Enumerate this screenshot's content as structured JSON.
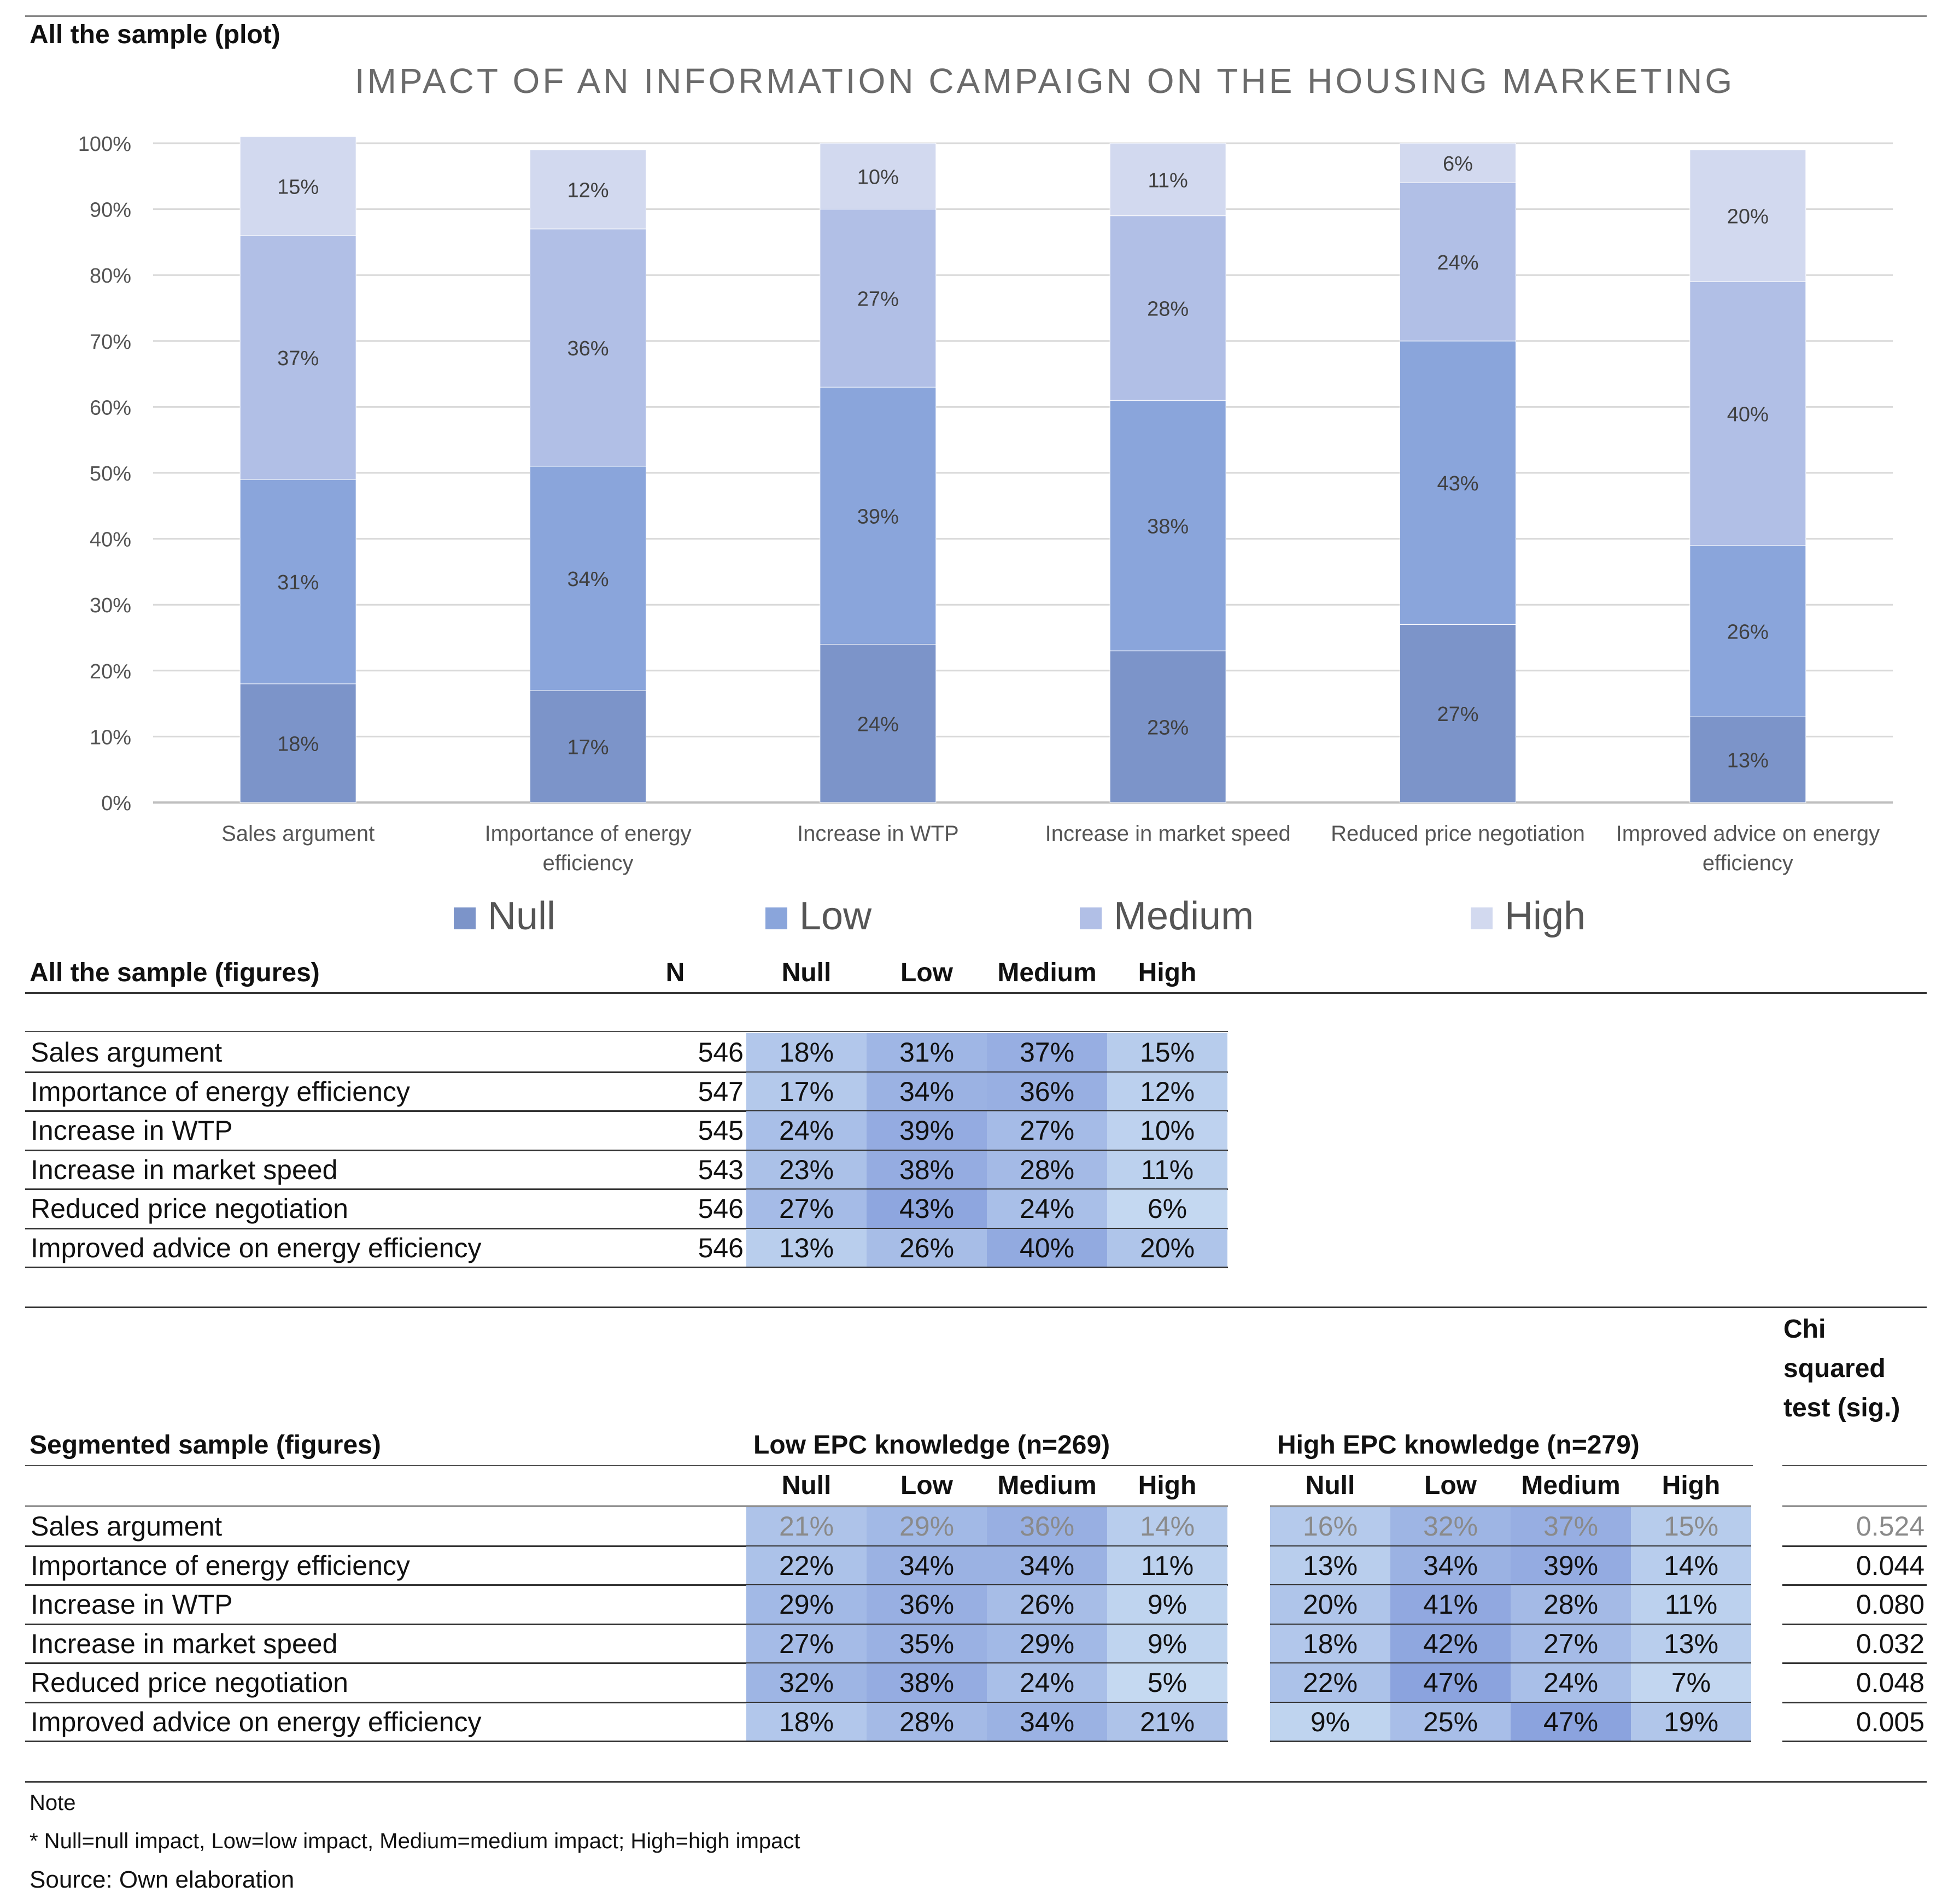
{
  "sections": {
    "plot_title": "All the sample (plot)",
    "figures_title": "All the sample (figures)",
    "segmented_title": "Segmented sample (figures)"
  },
  "chart_data": {
    "type": "bar",
    "stacked": "percent",
    "title": "IMPACT OF AN INFORMATION CAMPAIGN ON THE HOUSING MARKETING",
    "categories": [
      "Sales argument",
      "Importance of energy efficiency",
      "Increase in WTP",
      "Increase in market speed",
      "Reduced price negotiation",
      "Improved advice on energy efficiency"
    ],
    "category_lines": [
      [
        "Sales argument"
      ],
      [
        "Importance of energy",
        "efficiency"
      ],
      [
        "Increase in WTP"
      ],
      [
        "Increase in market speed"
      ],
      [
        "Reduced price negotiation"
      ],
      [
        "Improved advice on energy",
        "efficiency"
      ]
    ],
    "series": [
      {
        "name": "Null",
        "color": "#7c94c9",
        "values": [
          18,
          17,
          24,
          23,
          27,
          13
        ]
      },
      {
        "name": "Low",
        "color": "#8aa5db",
        "values": [
          31,
          34,
          39,
          38,
          43,
          26
        ]
      },
      {
        "name": "Medium",
        "color": "#b1bfe6",
        "values": [
          37,
          36,
          27,
          28,
          24,
          40
        ]
      },
      {
        "name": "High",
        "color": "#d2d9ef",
        "values": [
          15,
          12,
          10,
          11,
          6,
          20
        ]
      }
    ],
    "yticks": [
      "0%",
      "10%",
      "20%",
      "30%",
      "40%",
      "50%",
      "60%",
      "70%",
      "80%",
      "90%",
      "100%"
    ],
    "ylim": [
      0,
      100
    ],
    "legend_position": "bottom",
    "xlabel": "",
    "ylabel": ""
  },
  "all_sample": {
    "headers": {
      "n": "N",
      "null": "Null",
      "low": "Low",
      "medium": "Medium",
      "high": "High"
    },
    "rows": [
      {
        "label": "Sales argument",
        "n": "546",
        "values": [
          "18%",
          "31%",
          "37%",
          "15%"
        ]
      },
      {
        "label": "Importance of energy efficiency",
        "n": "547",
        "values": [
          "17%",
          "34%",
          "36%",
          "12%"
        ]
      },
      {
        "label": "Increase in WTP",
        "n": "545",
        "values": [
          "24%",
          "39%",
          "27%",
          "10%"
        ]
      },
      {
        "label": "Increase in market speed",
        "n": "543",
        "values": [
          "23%",
          "38%",
          "28%",
          "11%"
        ]
      },
      {
        "label": "Reduced price negotiation",
        "n": "546",
        "values": [
          "27%",
          "43%",
          "24%",
          "6%"
        ]
      },
      {
        "label": "Improved advice on energy efficiency",
        "n": "546",
        "values": [
          "13%",
          "26%",
          "40%",
          "20%"
        ]
      }
    ]
  },
  "segmented": {
    "low_group": "Low EPC knowledge (n=269)",
    "high_group": "High EPC knowledge (n=279)",
    "chi_header": [
      "Chi",
      "squared",
      "test (sig.)"
    ],
    "col_headers": [
      "Null",
      "Low",
      "Medium",
      "High"
    ],
    "rows": [
      {
        "label": "Sales argument",
        "low": [
          "21%",
          "29%",
          "36%",
          "14%"
        ],
        "high": [
          "16%",
          "32%",
          "37%",
          "15%"
        ],
        "chi": "0.524",
        "faded": true
      },
      {
        "label": "Importance of energy efficiency",
        "low": [
          "22%",
          "34%",
          "34%",
          "11%"
        ],
        "high": [
          "13%",
          "34%",
          "39%",
          "14%"
        ],
        "chi": "0.044",
        "faded": false
      },
      {
        "label": "Increase in WTP",
        "low": [
          "29%",
          "36%",
          "26%",
          "9%"
        ],
        "high": [
          "20%",
          "41%",
          "28%",
          "11%"
        ],
        "chi": "0.080",
        "faded": false
      },
      {
        "label": "Increase in market speed",
        "low": [
          "27%",
          "35%",
          "29%",
          "9%"
        ],
        "high": [
          "18%",
          "42%",
          "27%",
          "13%"
        ],
        "chi": "0.032",
        "faded": false
      },
      {
        "label": "Reduced price negotiation",
        "low": [
          "32%",
          "38%",
          "24%",
          "5%"
        ],
        "high": [
          "22%",
          "47%",
          "24%",
          "7%"
        ],
        "chi": "0.048",
        "faded": false
      },
      {
        "label": "Improved advice on energy efficiency",
        "low": [
          "18%",
          "28%",
          "34%",
          "21%"
        ],
        "high": [
          "9%",
          "25%",
          "47%",
          "19%"
        ],
        "chi": "0.005",
        "faded": false
      }
    ]
  },
  "notes": {
    "heading": "Note",
    "definition": "* Null=null impact, Low=low impact, Medium=medium impact; High=high impact",
    "source": "Source: Own elaboration"
  }
}
